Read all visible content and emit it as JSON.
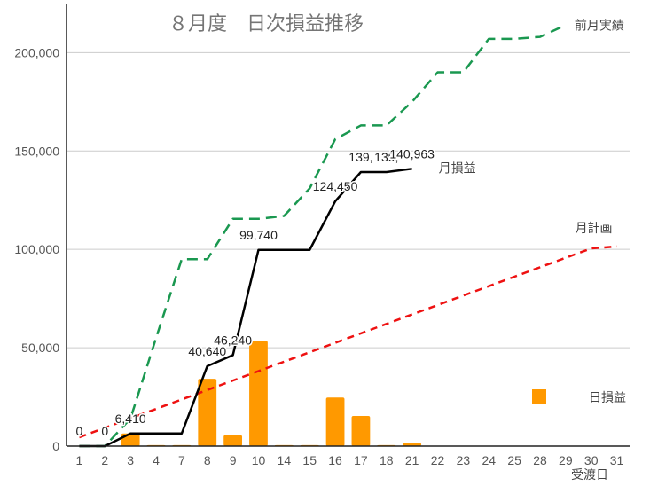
{
  "chart_data": {
    "type": "bar",
    "title": "８月度　日次損益推移",
    "xlabel": "受渡日",
    "ylabel": "",
    "ylim": [
      0,
      220000
    ],
    "yticks": [
      0,
      50000,
      100000,
      150000,
      200000
    ],
    "ytick_labels": [
      "0",
      "50,000",
      "100,000",
      "150,000",
      "200,000"
    ],
    "categories": [
      "1",
      "2",
      "3",
      "4",
      "7",
      "8",
      "9",
      "10",
      "14",
      "15",
      "16",
      "17",
      "18",
      "21",
      "22",
      "23",
      "24",
      "25",
      "28",
      "29",
      "30",
      "31"
    ],
    "grid": true,
    "colors": {
      "bars": "#ff9900",
      "cumulative": "#000000",
      "plan": "#ee1111",
      "previous": "#1a9850"
    },
    "series": [
      {
        "name": "日損益",
        "kind": "bar",
        "values": [
          0,
          0,
          6410,
          500,
          500,
          34230,
          5600,
          53500,
          500,
          500,
          24710,
          15300,
          500,
          1660,
          0,
          0,
          0,
          0,
          0,
          0,
          0,
          0
        ]
      },
      {
        "name": "月損益",
        "kind": "line",
        "values": [
          0,
          0,
          6410,
          6410,
          6410,
          40640,
          46240,
          99740,
          99740,
          99740,
          124450,
          139303,
          139303,
          140963,
          null,
          null,
          null,
          null,
          null,
          null,
          null,
          null
        ]
      },
      {
        "name": "月計画",
        "kind": "line",
        "dash": "dashed",
        "values": [
          4500,
          9300,
          14100,
          18900,
          23700,
          28500,
          33300,
          38100,
          42900,
          47700,
          52500,
          57300,
          62100,
          66900,
          71700,
          76500,
          81300,
          86100,
          90900,
          95700,
          100500,
          101500
        ]
      },
      {
        "name": "前月実績",
        "kind": "line",
        "dash": "dashed",
        "values": [
          0,
          0,
          14000,
          55000,
          95000,
          95000,
          115500,
          115500,
          117000,
          131000,
          156000,
          163000,
          163000,
          175000,
          190000,
          190000,
          207000,
          207000,
          208000,
          214000,
          null,
          null
        ]
      }
    ],
    "point_labels": [
      {
        "index": 0,
        "text": "0"
      },
      {
        "index": 1,
        "text": "0"
      },
      {
        "index": 2,
        "text": "6,410"
      },
      {
        "index": 5,
        "text": "40,640"
      },
      {
        "index": 6,
        "text": "46,240"
      },
      {
        "index": 7,
        "text": "99,740"
      },
      {
        "index": 10,
        "text": "124,450"
      },
      {
        "index": 11,
        "text": "139,"
      },
      {
        "index": 12,
        "text": "139,"
      },
      {
        "index": 13,
        "text": "140,963"
      }
    ]
  }
}
